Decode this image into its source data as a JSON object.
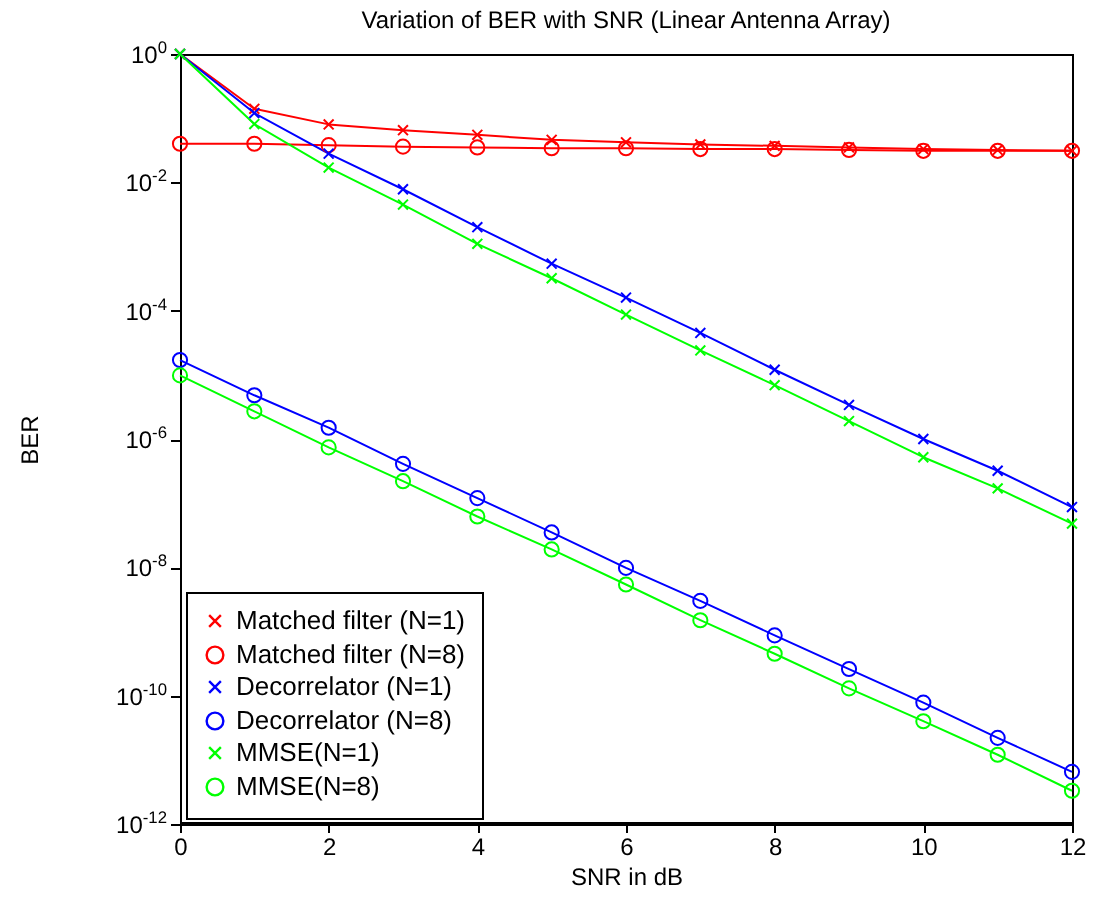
{
  "chart_data": {
    "type": "line",
    "title": "Variation of BER with SNR (Linear Antenna Array)",
    "xlabel": "SNR in dB",
    "ylabel": "BER",
    "log": "y",
    "grid": false,
    "legend": "bottom left",
    "x": [
      0,
      1,
      2,
      3,
      4,
      5,
      6,
      7,
      8,
      9,
      10,
      11,
      12
    ],
    "xlim": [
      0,
      12
    ],
    "xticks": [
      0,
      2,
      4,
      6,
      8,
      10,
      12
    ],
    "ylim": [
      1e-12,
      1
    ],
    "yticks": [
      {
        "value": 1e-12,
        "label": "10$^{-12}$"
      },
      {
        "value": 1e-10,
        "label": "10$^{-10}$"
      },
      {
        "value": 1e-08,
        "label": "10$^{-8}$"
      },
      {
        "value": 1e-06,
        "label": "10$^{-6}$"
      },
      {
        "value": 0.0001,
        "label": "10$^{-4}$"
      },
      {
        "value": 0.01,
        "label": "10$^{-2}$"
      },
      {
        "value": 1,
        "label": "10$^{0}$"
      }
    ],
    "series": [
      {
        "name": "Matched filter (N=1)",
        "color": "#ff0000",
        "marker": "cross",
        "values": [
          1,
          0.14,
          0.08,
          0.065,
          0.055,
          0.046,
          0.042,
          0.039,
          0.037,
          0.035,
          0.033,
          0.032,
          0.031
        ]
      },
      {
        "name": "Matched filter (N=8)",
        "color": "#ff0000",
        "marker": "circle",
        "values": [
          0.04,
          0.04,
          0.038,
          0.036,
          0.035,
          0.034,
          0.034,
          0.033,
          0.033,
          0.032,
          0.031,
          0.031,
          0.031
        ]
      },
      {
        "name": "Decorrelator (N=1)",
        "color": "#0000ff",
        "marker": "cross",
        "values": [
          1,
          0.12,
          0.028,
          0.0078,
          0.002,
          0.00054,
          0.00016,
          4.5e-05,
          1.2e-05,
          3.4e-06,
          1e-06,
          3.2e-07,
          8.7e-08
        ]
      },
      {
        "name": "Decorrelator (N=8)",
        "color": "#0000ff",
        "marker": "circle",
        "values": [
          1.7e-05,
          4.8e-06,
          1.5e-06,
          4.1e-07,
          1.2e-07,
          3.5e-08,
          9.8e-09,
          3e-09,
          8.7e-10,
          2.6e-10,
          7.8e-11,
          2.2e-11,
          6.5e-12
        ]
      },
      {
        "name": "MMSE(N=1)",
        "color": "#00ff00",
        "marker": "cross",
        "values": [
          1,
          0.081,
          0.017,
          0.0045,
          0.0011,
          0.00032,
          8.7e-05,
          2.4e-05,
          6.9e-06,
          1.9e-06,
          5.2e-07,
          1.7e-07,
          4.8e-08
        ]
      },
      {
        "name": "MMSE(N=8)",
        "color": "#00ff00",
        "marker": "circle",
        "values": [
          9.8e-06,
          2.7e-06,
          7.4e-07,
          2.2e-07,
          6.2e-08,
          1.9e-08,
          5.4e-09,
          1.5e-09,
          4.5e-10,
          1.3e-10,
          4e-11,
          1.2e-11,
          3.3e-12
        ]
      }
    ]
  }
}
